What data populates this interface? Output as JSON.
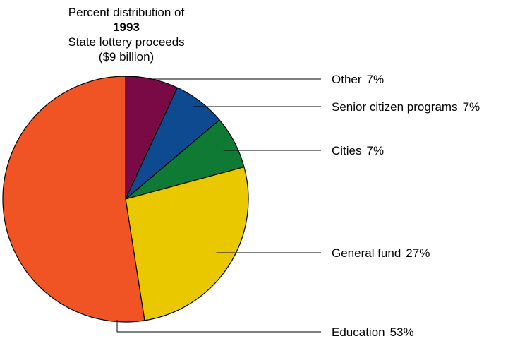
{
  "chart_data": {
    "type": "pie",
    "title": {
      "line1": "Percent distribution of",
      "line2": "1993",
      "line3": "State lottery proceeds",
      "line4": "($9 billion)"
    },
    "slices": [
      {
        "label": "Other",
        "value": 7,
        "value_label": "7%",
        "color": "#7a0a45"
      },
      {
        "label": "Senior citizen programs",
        "value": 7,
        "value_label": "7%",
        "color": "#0d4a8f"
      },
      {
        "label": "Cities",
        "value": 7,
        "value_label": "7%",
        "color": "#0f7a34"
      },
      {
        "label": "General fund",
        "value": 27,
        "value_label": "27%",
        "color": "#e9c800"
      },
      {
        "label": "Education",
        "value": 53,
        "value_label": "53%",
        "color": "#f15424"
      }
    ]
  }
}
